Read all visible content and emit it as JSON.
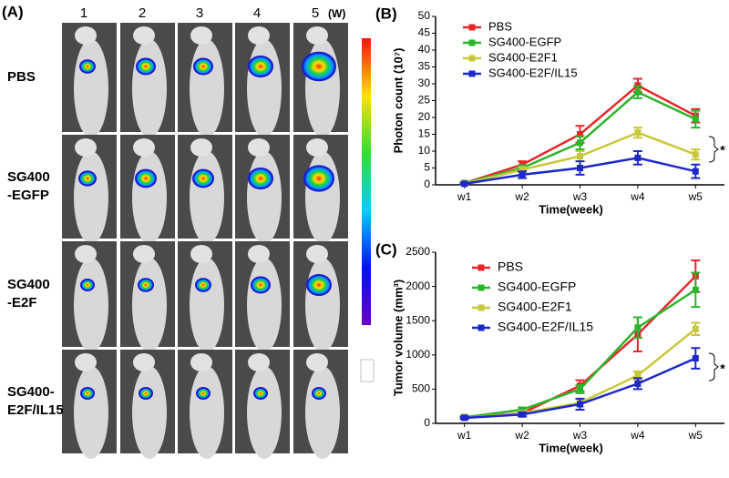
{
  "panel_a": {
    "label": "(A)",
    "columns": [
      "1",
      "2",
      "3",
      "4",
      "5"
    ],
    "unit": "(W)",
    "rows": [
      [
        "PBS"
      ],
      [
        "SG400",
        "-EGFP"
      ],
      [
        "SG400",
        "-E2F"
      ],
      [
        "SG400-",
        "E2F/IL15"
      ]
    ]
  },
  "chart_data": [
    {
      "type": "line",
      "panel": "(B)",
      "ylabel": "Photon count (10⁷)",
      "xlabel": "Time(week)",
      "categories": [
        "w1",
        "w2",
        "w3",
        "w4",
        "w5"
      ],
      "ylim": [
        0,
        50
      ],
      "yticks": [
        0,
        5,
        10,
        15,
        20,
        25,
        30,
        35,
        40,
        45,
        50
      ],
      "legend": "upper-left",
      "annotation": "*",
      "series": [
        {
          "name": "PBS",
          "color": "#e8262a",
          "values": [
            0.5,
            6,
            15,
            29.5,
            20.5
          ],
          "errors": [
            0.3,
            1,
            2.5,
            2,
            2
          ]
        },
        {
          "name": "SG400-EGFP",
          "color": "#2bb52b",
          "values": [
            0.5,
            5,
            12.5,
            27.5,
            19.5
          ],
          "errors": [
            0.3,
            0.8,
            2,
            1.8,
            2.5
          ]
        },
        {
          "name": "SG400-E2F1",
          "color": "#c8c83a",
          "values": [
            0.3,
            4.5,
            8.5,
            15.5,
            9
          ],
          "errors": [
            0.2,
            0.8,
            1.5,
            1.5,
            1.5
          ]
        },
        {
          "name": "SG400-E2F/IL15",
          "color": "#1d28c8",
          "values": [
            0.3,
            3,
            5,
            8,
            4
          ],
          "errors": [
            0.2,
            1,
            2,
            2,
            2
          ]
        }
      ]
    },
    {
      "type": "line",
      "panel": "(C)",
      "ylabel": "Tumor volume (mm³)",
      "xlabel": "Time(week)",
      "categories": [
        "w1",
        "w2",
        "w3",
        "w4",
        "w5"
      ],
      "ylim": [
        0,
        2500
      ],
      "yticks": [
        0,
        500,
        1000,
        1500,
        2000,
        2500
      ],
      "legend": "upper-left",
      "annotation": "*",
      "series": [
        {
          "name": "PBS",
          "color": "#e8262a",
          "values": [
            90,
            150,
            550,
            1300,
            2150
          ],
          "errors": [
            20,
            30,
            80,
            250,
            230
          ]
        },
        {
          "name": "SG400-EGFP",
          "color": "#2bb52b",
          "values": [
            90,
            200,
            500,
            1400,
            1950
          ],
          "errors": [
            20,
            30,
            60,
            150,
            250
          ]
        },
        {
          "name": "SG400-E2F1",
          "color": "#c8c83a",
          "values": [
            80,
            150,
            300,
            700,
            1380
          ],
          "errors": [
            15,
            30,
            50,
            60,
            90
          ]
        },
        {
          "name": "SG400-E2F/IL15",
          "color": "#1d28c8",
          "values": [
            80,
            130,
            280,
            580,
            950
          ],
          "errors": [
            15,
            30,
            80,
            80,
            150
          ]
        }
      ]
    }
  ]
}
